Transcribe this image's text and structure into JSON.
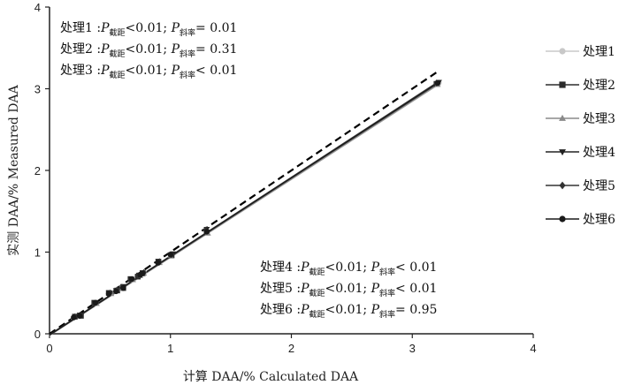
{
  "chart_data": {
    "type": "scatter",
    "xlabel": "计算 DAA/%   Calculated DAA",
    "ylabel": "实测 DAA/%   Measured DAA",
    "xlim": [
      0,
      4
    ],
    "ylim": [
      0,
      4
    ],
    "xticks": [
      "0",
      "1",
      "2",
      "3",
      "4"
    ],
    "yticks": [
      "0",
      "1",
      "2",
      "3",
      "4"
    ],
    "grid": false,
    "legend_position": "right",
    "reference_line": {
      "style": "dashed",
      "slope": 1,
      "intercept": 0,
      "x": [
        0,
        3.2
      ],
      "color": "#000000"
    },
    "annotations": [
      {
        "pre": "处理1 :",
        "italic1": "P",
        "sub1": "截距",
        "mid": "<0.01; ",
        "italic2": "P",
        "sub2": "斜率",
        "post": "= 0.01"
      },
      {
        "pre": "处理2 :",
        "italic1": "P",
        "sub1": "截距",
        "mid": "<0.01; ",
        "italic2": "P",
        "sub2": "斜率",
        "post": "= 0.31"
      },
      {
        "pre": "处理3 :",
        "italic1": "P",
        "sub1": "截距",
        "mid": "<0.01; ",
        "italic2": "P",
        "sub2": "斜率",
        "post": "< 0.01"
      },
      {
        "pre": "处理4 :",
        "italic1": "P",
        "sub1": "截距",
        "mid": "<0.01; ",
        "italic2": "P",
        "sub2": "斜率",
        "post": "< 0.01"
      },
      {
        "pre": "处理5 :",
        "italic1": "P",
        "sub1": "截距",
        "mid": "<0.01; ",
        "italic2": "P",
        "sub2": "斜率",
        "post": "< 0.01"
      },
      {
        "pre": "处理6 :",
        "italic1": "P",
        "sub1": "截距",
        "mid": "<0.01; ",
        "italic2": "P",
        "sub2": "斜率",
        "post": "= 0.95"
      }
    ],
    "series": [
      {
        "name": "处理1",
        "marker": "circle",
        "color": "#c8c8c8",
        "fit": {
          "intercept": -0.018,
          "slope": 0.96
        },
        "x": [
          0.2,
          0.25,
          0.38,
          0.5,
          0.55,
          0.6,
          0.68,
          0.74,
          0.78,
          0.9,
          1.0,
          1.3,
          3.22
        ],
        "y": [
          0.2,
          0.22,
          0.37,
          0.5,
          0.52,
          0.57,
          0.66,
          0.71,
          0.75,
          0.88,
          0.97,
          1.26,
          3.07
        ]
      },
      {
        "name": "处理2",
        "marker": "square",
        "color": "#2b2b2b",
        "fit": {
          "intercept": -0.015,
          "slope": 0.958
        },
        "x": [
          0.21,
          0.26,
          0.37,
          0.49,
          0.56,
          0.61,
          0.67,
          0.73,
          0.77,
          0.9,
          1.01,
          1.3,
          3.2
        ],
        "y": [
          0.21,
          0.22,
          0.38,
          0.5,
          0.53,
          0.56,
          0.67,
          0.7,
          0.74,
          0.88,
          0.96,
          1.24,
          3.06
        ]
      },
      {
        "name": "处理3",
        "marker": "triangle-up",
        "color": "#8a8a8a",
        "fit": {
          "intercept": -0.02,
          "slope": 0.955
        },
        "x": [
          0.2,
          0.24,
          0.39,
          0.51,
          0.54,
          0.6,
          0.69,
          0.75,
          0.78,
          0.91,
          1.0,
          1.31,
          3.21
        ],
        "y": [
          0.2,
          0.22,
          0.37,
          0.49,
          0.52,
          0.55,
          0.66,
          0.71,
          0.74,
          0.87,
          0.96,
          1.23,
          3.05
        ]
      },
      {
        "name": "处理4",
        "marker": "triangle-down",
        "color": "#222222",
        "fit": {
          "intercept": -0.012,
          "slope": 0.962
        },
        "x": [
          0.22,
          0.25,
          0.38,
          0.5,
          0.55,
          0.61,
          0.68,
          0.74,
          0.77,
          0.9,
          1.02,
          1.3,
          3.22
        ],
        "y": [
          0.21,
          0.23,
          0.38,
          0.5,
          0.53,
          0.58,
          0.67,
          0.72,
          0.75,
          0.89,
          0.98,
          1.28,
          3.08
        ]
      },
      {
        "name": "处理5",
        "marker": "diamond",
        "color": "#333333",
        "fit": {
          "intercept": -0.01,
          "slope": 0.963
        },
        "x": [
          0.21,
          0.26,
          0.37,
          0.5,
          0.56,
          0.6,
          0.67,
          0.73,
          0.78,
          0.91,
          1.01,
          1.29,
          3.2
        ],
        "y": [
          0.21,
          0.23,
          0.37,
          0.5,
          0.54,
          0.57,
          0.66,
          0.71,
          0.75,
          0.88,
          0.97,
          1.27,
          3.07
        ]
      },
      {
        "name": "处理6",
        "marker": "circle",
        "color": "#1a1a1a",
        "fit": {
          "intercept": -0.016,
          "slope": 0.962
        },
        "x": [
          0.2,
          0.25,
          0.38,
          0.49,
          0.55,
          0.61,
          0.68,
          0.75,
          0.77,
          0.9,
          1.0,
          1.3,
          3.21
        ],
        "y": [
          0.2,
          0.22,
          0.38,
          0.49,
          0.52,
          0.56,
          0.67,
          0.72,
          0.74,
          0.87,
          0.97,
          1.25,
          3.07
        ]
      }
    ]
  }
}
